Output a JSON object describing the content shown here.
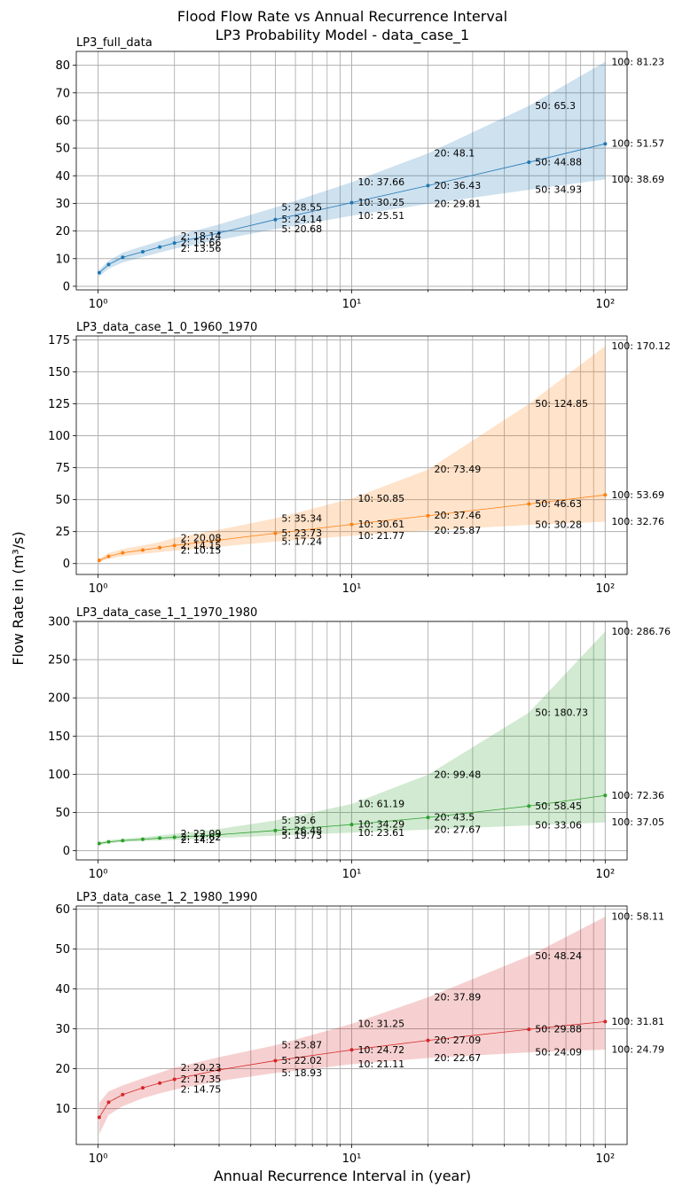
{
  "figure": {
    "title_line1": "Flood Flow Rate vs Annual Recurrence Interval",
    "title_line2": "LP3 Probability Model - data_case_1",
    "ylabel": "Flow Rate in (m³/s)",
    "xlabel": "Annual Recurrence Interval in (year)"
  },
  "chart_data": [
    {
      "type": "line",
      "title": "LP3_full_data",
      "x_scale": "log",
      "xlim": [
        0.82,
        122
      ],
      "ylim": [
        -1.3,
        85
      ],
      "yticks": [
        0,
        10,
        20,
        30,
        40,
        50,
        60,
        70,
        80
      ],
      "xtick_labels": [
        "10⁰",
        "10¹",
        "10²"
      ],
      "grid": true,
      "color": "#1f77b4",
      "x": [
        1.01,
        1.1,
        1.25,
        1.5,
        1.75,
        2,
        3,
        5,
        10,
        20,
        50,
        100
      ],
      "y": [
        4.9,
        7.9,
        10.5,
        12.5,
        14.2,
        15.66,
        19.3,
        24.14,
        30.25,
        36.43,
        44.88,
        51.57
      ],
      "lower": [
        3.6,
        6.4,
        8.6,
        10.6,
        12.2,
        13.56,
        16.8,
        20.68,
        25.51,
        29.81,
        34.93,
        38.69
      ],
      "upper": [
        6.0,
        9.2,
        12.2,
        14.5,
        16.4,
        18.14,
        22.4,
        28.55,
        37.66,
        48.1,
        65.3,
        81.23
      ],
      "annotated_x": [
        2,
        5,
        10,
        20,
        50,
        100
      ],
      "labels_mid": [
        "2: 15.66",
        "5: 24.14",
        "10: 30.25",
        "20: 36.43",
        "50: 44.88",
        "100: 51.57"
      ],
      "labels_low": [
        "2: 13.56",
        "5: 20.68",
        "10: 25.51",
        "20: 29.81",
        "50: 34.93",
        "100: 38.69"
      ],
      "labels_high": [
        "2: 18.14",
        "5: 28.55",
        "10: 37.66",
        "20: 48.1",
        "50: 65.3",
        "100: 81.23"
      ]
    },
    {
      "type": "line",
      "title": "LP3_data_case_1_0_1960_1970",
      "x_scale": "log",
      "xlim": [
        0.82,
        122
      ],
      "ylim": [
        -8.5,
        178
      ],
      "yticks": [
        0,
        25,
        50,
        75,
        100,
        125,
        150,
        175
      ],
      "xtick_labels": [
        "10⁰",
        "10¹",
        "10²"
      ],
      "grid": true,
      "color": "#ff7f0e",
      "x": [
        1.01,
        1.1,
        1.25,
        1.5,
        1.75,
        2,
        3,
        5,
        10,
        20,
        50,
        100
      ],
      "y": [
        2.5,
        5.6,
        8.4,
        10.6,
        12.5,
        14.15,
        18.4,
        23.73,
        30.61,
        37.46,
        46.63,
        53.69
      ],
      "lower": [
        1.2,
        3.6,
        5.7,
        7.5,
        8.9,
        10.15,
        13.2,
        17.24,
        21.77,
        25.87,
        30.28,
        32.76
      ],
      "upper": [
        4.0,
        8.2,
        11.4,
        14.2,
        16.8,
        20.08,
        26.5,
        35.34,
        50.85,
        73.49,
        124.85,
        170.12
      ],
      "annotated_x": [
        2,
        5,
        10,
        20,
        50,
        100
      ],
      "labels_mid": [
        "2: 14.15",
        "5: 23.73",
        "10: 30.61",
        "20: 37.46",
        "50: 46.63",
        "100: 53.69"
      ],
      "labels_low": [
        "2: 10.15",
        "5: 17.24",
        "10: 21.77",
        "20: 25.87",
        "50: 30.28",
        "100: 32.76"
      ],
      "labels_high": [
        "2: 20.08",
        "5: 35.34",
        "10: 50.85",
        "20: 73.49",
        "50: 124.85",
        "100: 170.12"
      ]
    },
    {
      "type": "line",
      "title": "LP3_data_case_1_1_1970_1980",
      "x_scale": "log",
      "xlim": [
        0.82,
        122
      ],
      "ylim": [
        -12,
        300
      ],
      "yticks": [
        0,
        50,
        100,
        150,
        200,
        250,
        300
      ],
      "xtick_labels": [
        "10⁰",
        "10¹",
        "10²"
      ],
      "grid": true,
      "color": "#2ca02c",
      "x": [
        1.01,
        1.1,
        1.25,
        1.5,
        1.75,
        2,
        3,
        5,
        10,
        20,
        50,
        100
      ],
      "y": [
        9.4,
        11.6,
        13.2,
        15.0,
        16.5,
        17.62,
        21.0,
        26.48,
        34.29,
        43.5,
        58.45,
        72.36
      ],
      "lower": [
        7.5,
        9.8,
        11.3,
        12.7,
        13.6,
        14.2,
        16.6,
        19.73,
        23.61,
        27.67,
        33.06,
        37.05
      ],
      "upper": [
        11.5,
        14.0,
        15.7,
        17.7,
        20.0,
        22.09,
        28.5,
        39.6,
        61.19,
        99.48,
        180.73,
        286.76
      ],
      "annotated_x": [
        2,
        5,
        10,
        20,
        50,
        100
      ],
      "labels_mid": [
        "2: 17.62",
        "5: 26.48",
        "10: 34.29",
        "20: 43.5",
        "50: 58.45",
        "100: 72.36"
      ],
      "labels_low": [
        "2: 14.2",
        "5: 19.73",
        "10: 23.61",
        "20: 27.67",
        "50: 33.06",
        "100: 37.05"
      ],
      "labels_high": [
        "2: 22.09",
        "5: 39.6",
        "10: 61.19",
        "20: 99.48",
        "50: 180.73",
        "100: 286.76"
      ]
    },
    {
      "type": "line",
      "title": "LP3_data_case_1_2_1980_1990",
      "x_scale": "log",
      "xlim": [
        0.82,
        122
      ],
      "ylim": [
        1,
        60.8
      ],
      "yticks": [
        10,
        20,
        30,
        40,
        50,
        60
      ],
      "xtick_labels": [
        "10⁰",
        "10¹",
        "10²"
      ],
      "grid": true,
      "color": "#d62728",
      "x": [
        1.01,
        1.1,
        1.25,
        1.5,
        1.75,
        2,
        3,
        5,
        10,
        20,
        50,
        100
      ],
      "y": [
        7.8,
        11.6,
        13.5,
        15.2,
        16.4,
        17.35,
        19.7,
        22.02,
        24.72,
        27.09,
        29.88,
        31.81
      ],
      "lower": [
        3.6,
        8.4,
        10.6,
        12.6,
        13.8,
        14.75,
        16.9,
        18.93,
        21.11,
        22.67,
        24.09,
        24.79
      ],
      "upper": [
        11.5,
        14.3,
        15.8,
        17.6,
        19.0,
        20.23,
        22.9,
        25.87,
        31.25,
        37.89,
        48.24,
        58.11
      ],
      "annotated_x": [
        2,
        5,
        10,
        20,
        50,
        100
      ],
      "labels_mid": [
        "2: 17.35",
        "5: 22.02",
        "10: 24.72",
        "20: 27.09",
        "50: 29.88",
        "100: 31.81"
      ],
      "labels_low": [
        "2: 14.75",
        "5: 18.93",
        "10: 21.11",
        "20: 22.67",
        "50: 24.09",
        "100: 24.79"
      ],
      "labels_high": [
        "2: 20.23",
        "5: 25.87",
        "10: 31.25",
        "20: 37.89",
        "50: 48.24",
        "100: 58.11"
      ]
    }
  ]
}
